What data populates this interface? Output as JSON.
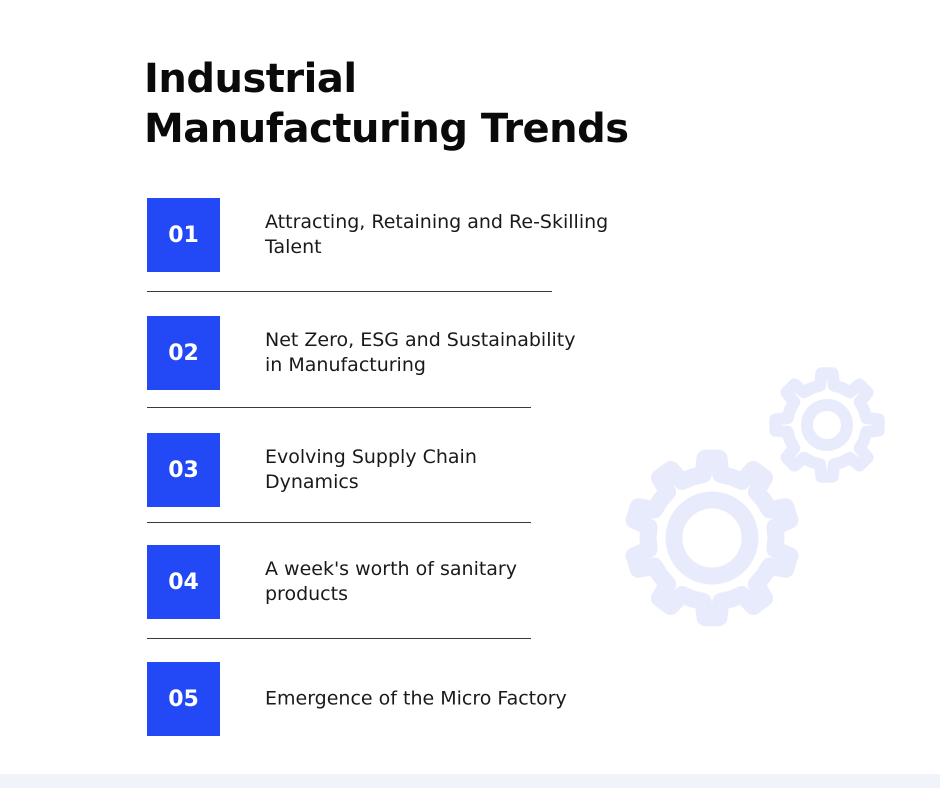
{
  "title": {
    "line1": "Industrial",
    "line2": "Manufacturing Trends"
  },
  "accent_color": "#2348f5",
  "gear_color": "#e8ebfc",
  "items": [
    {
      "number": "01",
      "text": "Attracting, Retaining and Re-Skilling\nTalent"
    },
    {
      "number": "02",
      "text": "Net Zero, ESG and Sustainability\nin Manufacturing"
    },
    {
      "number": "03",
      "text": "Evolving Supply Chain\nDynamics"
    },
    {
      "number": "04",
      "text": "A week's worth of sanitary\nproducts"
    },
    {
      "number": "05",
      "text": "Emergence of the Micro Factory"
    }
  ],
  "icons": {
    "large_gear": "gear-icon",
    "small_gear": "gear-icon"
  }
}
